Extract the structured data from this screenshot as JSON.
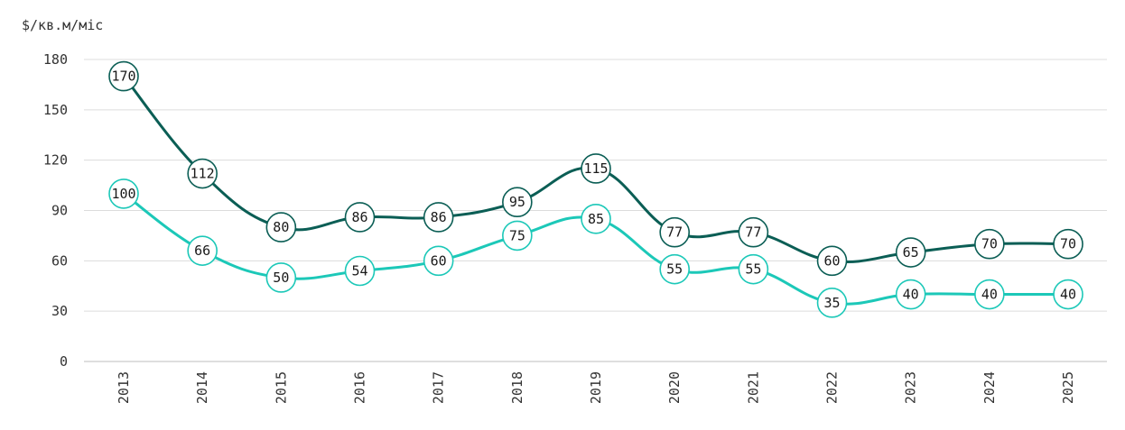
{
  "chart_data": {
    "type": "line",
    "title": "",
    "xlabel": "",
    "ylabel": "$/кв.м/міс",
    "x": [
      "2013",
      "2014",
      "2015",
      "2016",
      "2017",
      "2018",
      "2019",
      "2020",
      "2021",
      "2022",
      "2023",
      "2024",
      "2025"
    ],
    "y_ticks": [
      0,
      30,
      60,
      90,
      120,
      150,
      180
    ],
    "ylim": [
      0,
      180
    ],
    "grid": true,
    "legend": "none",
    "series": [
      {
        "values": [
          170,
          112,
          80,
          86,
          86,
          95,
          115,
          77,
          77,
          60,
          65,
          70,
          70
        ],
        "color": "#0b5e55"
      },
      {
        "values": [
          100,
          66,
          50,
          54,
          60,
          75,
          85,
          55,
          55,
          35,
          40,
          40,
          40
        ],
        "color": "#1cc8b8"
      }
    ]
  }
}
